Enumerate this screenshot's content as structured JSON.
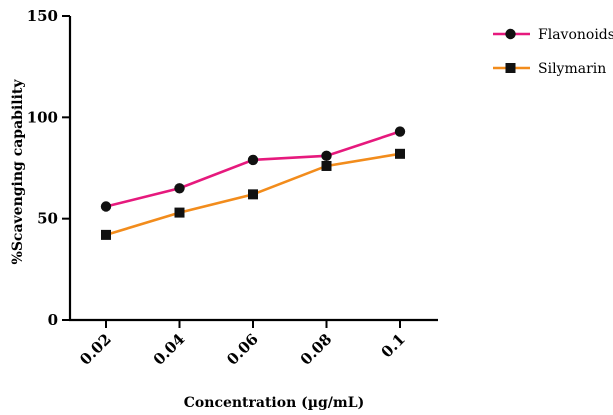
{
  "chart_data": {
    "type": "line",
    "title": "",
    "xlabel": "Concentration (µg/mL)",
    "ylabel": "%Scavenging capability",
    "categories": [
      "0.02",
      "0.04",
      "0.06",
      "0.08",
      "0.1"
    ],
    "ylim": [
      0,
      150
    ],
    "yticks": [
      "0",
      "50",
      "100",
      "150"
    ],
    "grid": false,
    "legend_position": "top-right",
    "series": [
      {
        "name": "Flavonoids",
        "values": [
          56,
          65,
          79,
          81,
          93
        ],
        "color": "#e6197d",
        "marker": "circle"
      },
      {
        "name": "Silymarin",
        "values": [
          42,
          53,
          62,
          76,
          82
        ],
        "color": "#f28c1c",
        "marker": "square"
      }
    ]
  }
}
